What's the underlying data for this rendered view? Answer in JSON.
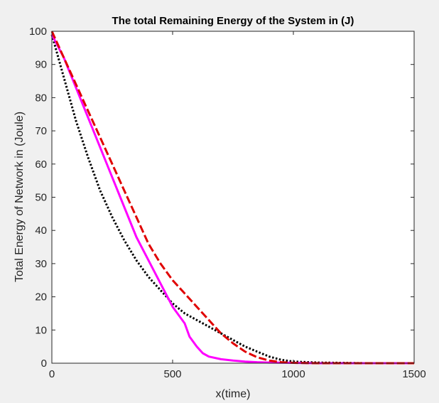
{
  "chart_data": {
    "type": "line",
    "title": "The total Remaining Energy of the System in (J)",
    "xlabel": "x(time)",
    "ylabel": "Total Energy of Network in (Joule)",
    "xlim": [
      0,
      1500
    ],
    "ylim": [
      0,
      100
    ],
    "xticks": [
      0,
      500,
      1000,
      1500
    ],
    "yticks": [
      0,
      10,
      20,
      30,
      40,
      50,
      60,
      70,
      80,
      90,
      100
    ],
    "grid": false,
    "legend": "none",
    "series": [
      {
        "color": "#000000",
        "style": "dotted",
        "x": [
          0,
          50,
          100,
          150,
          200,
          250,
          300,
          350,
          400,
          450,
          500,
          550,
          600,
          650,
          700,
          750,
          800,
          850,
          900,
          950,
          1000,
          1100,
          1200,
          1300,
          1400,
          1500
        ],
        "y": [
          99,
          86,
          73,
          62,
          52,
          44,
          37,
          31,
          26,
          22,
          18,
          15,
          13,
          11,
          9,
          7,
          5,
          3.5,
          2,
          1,
          0.5,
          0.2,
          0.1,
          0,
          0,
          0
        ]
      },
      {
        "color": "#ff00ff",
        "style": "solid",
        "x": [
          0,
          50,
          100,
          150,
          200,
          250,
          300,
          350,
          400,
          450,
          500,
          550,
          570,
          600,
          625,
          650,
          700,
          750,
          800,
          850,
          900,
          1000,
          1100,
          1200,
          1300,
          1400,
          1500
        ],
        "y": [
          99,
          92,
          83,
          74,
          65,
          56,
          47,
          38,
          31,
          24,
          17,
          12,
          8,
          5,
          3,
          2,
          1.2,
          0.8,
          0.5,
          0.3,
          0.2,
          0.1,
          0,
          0,
          0,
          0,
          0
        ]
      },
      {
        "color": "#e00000",
        "style": "dashed",
        "x": [
          0,
          50,
          100,
          150,
          200,
          250,
          300,
          350,
          400,
          450,
          500,
          550,
          600,
          650,
          700,
          750,
          800,
          850,
          900,
          950,
          1000,
          1100,
          1200,
          1300,
          1400,
          1500
        ],
        "y": [
          100,
          92,
          84,
          76,
          68,
          60,
          52,
          44,
          36,
          30,
          25,
          21,
          17,
          13,
          9,
          6,
          3.5,
          1.8,
          0.8,
          0.3,
          0.1,
          0,
          0,
          0,
          0,
          0
        ]
      }
    ]
  }
}
